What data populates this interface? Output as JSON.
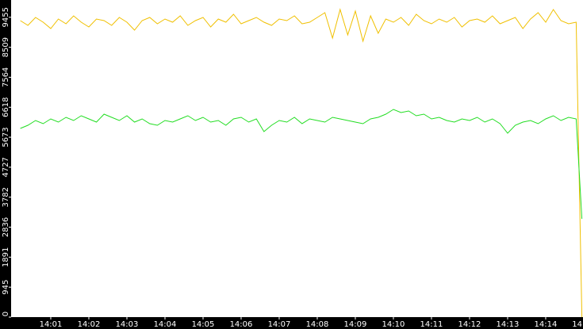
{
  "chart_data": {
    "type": "line",
    "x": [
      0.2,
      0.4,
      0.6,
      0.8,
      1.0,
      1.2,
      1.4,
      1.6,
      1.8,
      2.0,
      2.2,
      2.4,
      2.6,
      2.8,
      3.0,
      3.2,
      3.4,
      3.6,
      3.8,
      4.0,
      4.2,
      4.4,
      4.6,
      4.8,
      5.0,
      5.2,
      5.4,
      5.6,
      5.8,
      6.0,
      6.2,
      6.4,
      6.6,
      6.8,
      7.0,
      7.2,
      7.4,
      7.6,
      7.8,
      8.0,
      8.2,
      8.4,
      8.6,
      8.8,
      9.0,
      9.2,
      9.4,
      9.6,
      9.8,
      10.0,
      10.2,
      10.4,
      10.6,
      10.8,
      11.0,
      11.2,
      11.4,
      11.6,
      11.8,
      12.0,
      12.2,
      12.4,
      12.6,
      12.8,
      13.0,
      13.2,
      13.4,
      13.6,
      13.8,
      14.0,
      14.2,
      14.4,
      14.6,
      14.8,
      14.95
    ],
    "series": [
      {
        "color": "#f0c000",
        "values": [
          9350,
          9200,
          9450,
          9300,
          9100,
          9400,
          9250,
          9500,
          9300,
          9150,
          9400,
          9350,
          9200,
          9450,
          9300,
          9050,
          9350,
          9450,
          9250,
          9400,
          9300,
          9500,
          9200,
          9350,
          9450,
          9150,
          9400,
          9300,
          9550,
          9250,
          9350,
          9450,
          9300,
          9200,
          9400,
          9350,
          9500,
          9250,
          9300,
          9450,
          9600,
          8800,
          9700,
          8900,
          9650,
          8700,
          9500,
          8950,
          9400,
          9300,
          9450,
          9200,
          9550,
          9350,
          9250,
          9400,
          9300,
          9450,
          9150,
          9350,
          9400,
          9300,
          9500,
          9250,
          9350,
          9450,
          9100,
          9400,
          9600,
          9300,
          9700,
          9350,
          9250,
          9300,
          0
        ]
      },
      {
        "color": "#22dd22",
        "values": [
          5950,
          6050,
          6200,
          6100,
          6250,
          6150,
          6300,
          6200,
          6350,
          6250,
          6150,
          6400,
          6300,
          6200,
          6350,
          6150,
          6250,
          6100,
          6050,
          6200,
          6150,
          6250,
          6350,
          6200,
          6300,
          6150,
          6200,
          6050,
          6250,
          6300,
          6150,
          6250,
          5850,
          6050,
          6200,
          6150,
          6300,
          6100,
          6250,
          6200,
          6150,
          6300,
          6250,
          6200,
          6150,
          6100,
          6250,
          6300,
          6400,
          6550,
          6450,
          6500,
          6350,
          6400,
          6250,
          6300,
          6200,
          6150,
          6250,
          6200,
          6300,
          6150,
          6250,
          6100,
          5800,
          6050,
          6150,
          6200,
          6100,
          6250,
          6350,
          6200,
          6300,
          6250,
          3100
        ]
      }
    ],
    "xlim": [
      0,
      14.98
    ],
    "xticks": [
      {
        "value": 1,
        "label": "14:01"
      },
      {
        "value": 2,
        "label": "14:02"
      },
      {
        "value": 3,
        "label": "14:03"
      },
      {
        "value": 4,
        "label": "14:04"
      },
      {
        "value": 5,
        "label": "14:05"
      },
      {
        "value": 6,
        "label": "14:06"
      },
      {
        "value": 7,
        "label": "14:07"
      },
      {
        "value": 8,
        "label": "14:08"
      },
      {
        "value": 9,
        "label": "14:09"
      },
      {
        "value": 10,
        "label": "14:10"
      },
      {
        "value": 11,
        "label": "14:11"
      },
      {
        "value": 12,
        "label": "14:12"
      },
      {
        "value": 13,
        "label": "14:13"
      },
      {
        "value": 14,
        "label": "14:14"
      },
      {
        "value": 15,
        "label": "14"
      }
    ],
    "ylim": [
      0,
      10000
    ],
    "yticks": [
      0,
      945,
      1891,
      2836,
      3782,
      4727,
      5673,
      6618,
      7564,
      8509,
      9455
    ]
  }
}
